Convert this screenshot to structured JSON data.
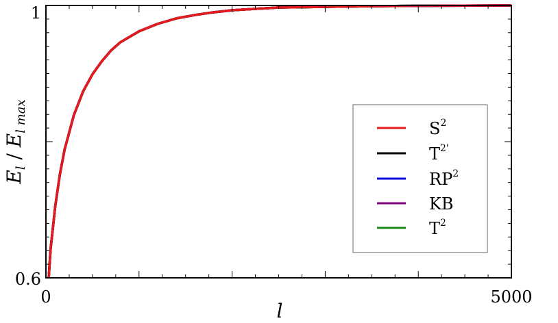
{
  "chart_data": {
    "type": "line",
    "title": "",
    "xlabel": "l",
    "ylabel": {
      "main": "E",
      "sub1": "l",
      "slash": " / ",
      "main2": "E",
      "sub2": "l max"
    },
    "xlim": [
      0,
      5000
    ],
    "ylim": [
      0.6,
      1.0
    ],
    "x_tick_labels": [
      "0",
      "5000"
    ],
    "y_tick_labels": [
      "0.6",
      "1"
    ],
    "grid": false,
    "legend_position": "right",
    "x": [
      30,
      50,
      100,
      150,
      200,
      300,
      400,
      500,
      600,
      700,
      800,
      1000,
      1200,
      1400,
      1600,
      1800,
      2000,
      2500,
      3000,
      3500,
      4000,
      4500,
      5000
    ],
    "series": [
      {
        "name": "S²",
        "color": "#e41a1c",
        "values": [
          0.6,
          0.642,
          0.705,
          0.752,
          0.788,
          0.839,
          0.874,
          0.899,
          0.918,
          0.934,
          0.946,
          0.962,
          0.973,
          0.981,
          0.986,
          0.99,
          0.993,
          0.997,
          0.998,
          0.999,
          0.9995,
          0.9998,
          1.0
        ]
      },
      {
        "name": "T²'",
        "color": "#000000",
        "values": [
          0.6,
          0.642,
          0.705,
          0.752,
          0.788,
          0.839,
          0.874,
          0.899,
          0.918,
          0.934,
          0.946,
          0.962,
          0.973,
          0.981,
          0.986,
          0.99,
          0.993,
          0.997,
          0.998,
          0.999,
          0.9995,
          0.9998,
          1.0
        ]
      },
      {
        "name": "RP²",
        "color": "#0a0adc",
        "values": [
          0.6,
          0.642,
          0.705,
          0.752,
          0.788,
          0.839,
          0.874,
          0.899,
          0.918,
          0.934,
          0.946,
          0.962,
          0.973,
          0.981,
          0.986,
          0.99,
          0.993,
          0.997,
          0.998,
          0.999,
          0.9995,
          0.9998,
          1.0
        ]
      },
      {
        "name": "KB",
        "color": "#800080",
        "values": [
          0.6,
          0.642,
          0.705,
          0.752,
          0.788,
          0.839,
          0.874,
          0.899,
          0.918,
          0.934,
          0.946,
          0.962,
          0.973,
          0.981,
          0.986,
          0.99,
          0.993,
          0.997,
          0.998,
          0.999,
          0.9995,
          0.9998,
          1.0
        ]
      },
      {
        "name": "T²",
        "color": "#1a8a1a",
        "values": [
          0.6,
          0.642,
          0.705,
          0.752,
          0.788,
          0.839,
          0.874,
          0.899,
          0.918,
          0.934,
          0.946,
          0.962,
          0.973,
          0.981,
          0.986,
          0.99,
          0.993,
          0.997,
          0.998,
          0.999,
          0.9995,
          0.9998,
          1.0
        ]
      }
    ],
    "legend": [
      {
        "base": "S",
        "sup": "2",
        "color": "#e41a1c"
      },
      {
        "base": "T",
        "sup": "2'",
        "color": "#000000"
      },
      {
        "base": "RP",
        "sup": "2",
        "color": "#0a0adc"
      },
      {
        "base": "KB",
        "sup": "",
        "color": "#800080"
      },
      {
        "base": "T",
        "sup": "2",
        "color": "#1a8a1a"
      }
    ]
  }
}
